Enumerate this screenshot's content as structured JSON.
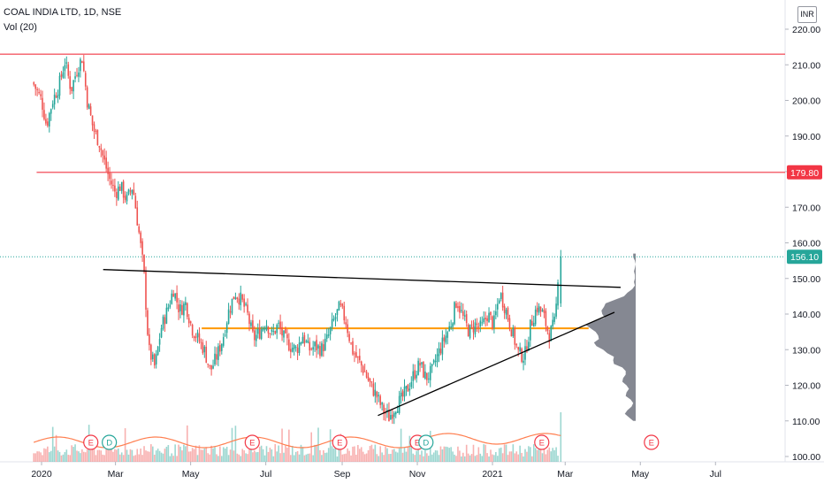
{
  "legend": {
    "symbol_line": "COAL INDIA LTD, 1D, NSE",
    "volume_line": "Vol (20)"
  },
  "currency_badge": "INR",
  "colors": {
    "up": "#26a69a",
    "down": "#ef5350",
    "resistance_line": "#f23645",
    "trend_line": "#000000",
    "support_line": "#ff9800",
    "volume_profile": "#787b86",
    "volume_ma": "#ff7f50",
    "axis_text": "#131722"
  },
  "chart_data": {
    "type": "candlestick",
    "title": "COAL INDIA LTD, 1D, NSE",
    "y_axis": {
      "ticks": [
        "100.00",
        "110.00",
        "120.00",
        "130.00",
        "140.00",
        "150.00",
        "160.00",
        "170.00",
        "180.00",
        "190.00",
        "200.00",
        "210.00",
        "220.00"
      ],
      "ylim": [
        99,
        221
      ]
    },
    "x_axis": {
      "ticks": [
        "2020",
        "Mar",
        "May",
        "Jul",
        "Sep",
        "Nov",
        "2021",
        "Mar",
        "May",
        "Jul"
      ]
    },
    "price_labels": [
      {
        "value": 179.8,
        "label": "179.80",
        "color": "#f23645"
      },
      {
        "value": 156.1,
        "label": "156.10",
        "color": "#26a69a"
      }
    ],
    "horizontal_lines": [
      {
        "value": 213.0,
        "color": "#f23645"
      },
      {
        "value": 179.8,
        "color": "#f23645"
      },
      {
        "value": 136.0,
        "color": "#ff9800"
      }
    ],
    "trend_lines": [
      {
        "from": {
          "date": "2020-02-20",
          "price": 152.5
        },
        "to": {
          "date": "2021-04-15",
          "price": 147.5
        }
      },
      {
        "from": {
          "date": "2020-09-30",
          "price": 111.5
        },
        "to": {
          "date": "2021-04-10",
          "price": 140.5
        }
      }
    ],
    "event_markers": [
      {
        "date": "2020-02-10",
        "label": "E"
      },
      {
        "date": "2020-02-25",
        "label": "D"
      },
      {
        "date": "2020-06-20",
        "label": "E"
      },
      {
        "date": "2020-08-30",
        "label": "E"
      },
      {
        "date": "2020-11-01",
        "label": "E"
      },
      {
        "date": "2020-11-08",
        "label": "D"
      },
      {
        "date": "2021-02-10",
        "label": "E"
      },
      {
        "date": "2021-05-10",
        "label": "E"
      }
    ],
    "close_series": [
      {
        "date": "2019-12-25",
        "close": 205
      },
      {
        "date": "2020-01-01",
        "close": 200
      },
      {
        "date": "2020-01-05",
        "close": 193
      },
      {
        "date": "2020-01-10",
        "close": 200
      },
      {
        "date": "2020-01-15",
        "close": 204
      },
      {
        "date": "2020-01-20",
        "close": 211
      },
      {
        "date": "2020-01-25",
        "close": 203
      },
      {
        "date": "2020-01-30",
        "close": 209
      },
      {
        "date": "2020-02-03",
        "close": 212
      },
      {
        "date": "2020-02-07",
        "close": 200
      },
      {
        "date": "2020-02-12",
        "close": 192
      },
      {
        "date": "2020-02-17",
        "close": 188
      },
      {
        "date": "2020-02-20",
        "close": 184
      },
      {
        "date": "2020-02-25",
        "close": 178
      },
      {
        "date": "2020-03-01",
        "close": 174
      },
      {
        "date": "2020-03-05",
        "close": 176
      },
      {
        "date": "2020-03-10",
        "close": 172
      },
      {
        "date": "2020-03-15",
        "close": 176
      },
      {
        "date": "2020-03-20",
        "close": 163
      },
      {
        "date": "2020-03-24",
        "close": 152
      },
      {
        "date": "2020-03-28",
        "close": 130
      },
      {
        "date": "2020-04-02",
        "close": 125
      },
      {
        "date": "2020-04-07",
        "close": 136
      },
      {
        "date": "2020-04-12",
        "close": 141
      },
      {
        "date": "2020-04-17",
        "close": 147
      },
      {
        "date": "2020-04-22",
        "close": 141
      },
      {
        "date": "2020-04-27",
        "close": 143
      },
      {
        "date": "2020-05-02",
        "close": 136
      },
      {
        "date": "2020-05-07",
        "close": 133
      },
      {
        "date": "2020-05-12",
        "close": 130
      },
      {
        "date": "2020-05-17",
        "close": 124
      },
      {
        "date": "2020-05-22",
        "close": 128
      },
      {
        "date": "2020-05-27",
        "close": 133
      },
      {
        "date": "2020-06-01",
        "close": 141
      },
      {
        "date": "2020-06-06",
        "close": 146
      },
      {
        "date": "2020-06-11",
        "close": 144
      },
      {
        "date": "2020-06-16",
        "close": 140
      },
      {
        "date": "2020-06-21",
        "close": 133
      },
      {
        "date": "2020-06-26",
        "close": 135
      },
      {
        "date": "2020-07-01",
        "close": 138
      },
      {
        "date": "2020-07-06",
        "close": 134
      },
      {
        "date": "2020-07-11",
        "close": 137
      },
      {
        "date": "2020-07-16",
        "close": 133
      },
      {
        "date": "2020-07-21",
        "close": 131
      },
      {
        "date": "2020-07-26",
        "close": 130
      },
      {
        "date": "2020-07-31",
        "close": 134
      },
      {
        "date": "2020-08-05",
        "close": 130
      },
      {
        "date": "2020-08-10",
        "close": 131
      },
      {
        "date": "2020-08-15",
        "close": 130
      },
      {
        "date": "2020-08-20",
        "close": 133
      },
      {
        "date": "2020-08-25",
        "close": 138
      },
      {
        "date": "2020-08-30",
        "close": 142
      },
      {
        "date": "2020-09-04",
        "close": 138
      },
      {
        "date": "2020-09-09",
        "close": 130
      },
      {
        "date": "2020-09-14",
        "close": 127
      },
      {
        "date": "2020-09-19",
        "close": 124
      },
      {
        "date": "2020-09-24",
        "close": 120
      },
      {
        "date": "2020-09-29",
        "close": 117
      },
      {
        "date": "2020-10-04",
        "close": 113
      },
      {
        "date": "2020-10-09",
        "close": 111
      },
      {
        "date": "2020-10-14",
        "close": 114
      },
      {
        "date": "2020-10-19",
        "close": 116
      },
      {
        "date": "2020-10-24",
        "close": 119
      },
      {
        "date": "2020-10-29",
        "close": 123
      },
      {
        "date": "2020-11-03",
        "close": 126
      },
      {
        "date": "2020-11-08",
        "close": 122
      },
      {
        "date": "2020-11-13",
        "close": 124
      },
      {
        "date": "2020-11-18",
        "close": 129
      },
      {
        "date": "2020-11-23",
        "close": 133
      },
      {
        "date": "2020-11-28",
        "close": 137
      },
      {
        "date": "2020-12-03",
        "close": 144
      },
      {
        "date": "2020-12-08",
        "close": 139
      },
      {
        "date": "2020-12-13",
        "close": 135
      },
      {
        "date": "2020-12-18",
        "close": 137
      },
      {
        "date": "2020-12-23",
        "close": 136
      },
      {
        "date": "2020-12-28",
        "close": 140
      },
      {
        "date": "2021-01-02",
        "close": 137
      },
      {
        "date": "2021-01-07",
        "close": 146
      },
      {
        "date": "2021-01-12",
        "close": 141
      },
      {
        "date": "2021-01-17",
        "close": 135
      },
      {
        "date": "2021-01-22",
        "close": 129
      },
      {
        "date": "2021-01-27",
        "close": 128
      },
      {
        "date": "2021-02-01",
        "close": 137
      },
      {
        "date": "2021-02-06",
        "close": 142
      },
      {
        "date": "2021-02-11",
        "close": 140
      },
      {
        "date": "2021-02-16",
        "close": 134
      },
      {
        "date": "2021-02-21",
        "close": 138
      },
      {
        "date": "2021-02-24",
        "close": 156.1
      }
    ]
  }
}
